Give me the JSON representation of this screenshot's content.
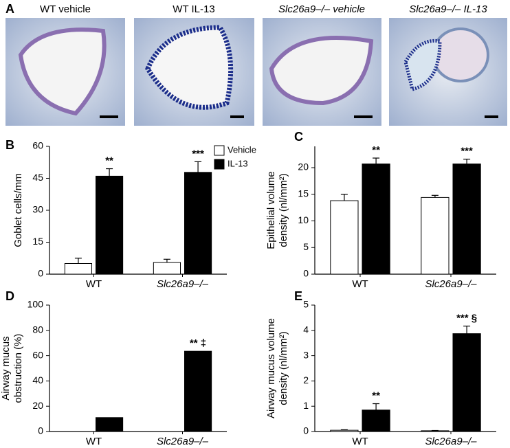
{
  "panel_a": {
    "letter": "A",
    "labels": [
      "WT vehicle",
      "WT IL-13",
      "Slc26a9–/– vehicle",
      "Slc26a9–/– IL-13"
    ]
  },
  "chart_data": [
    {
      "type": "bar",
      "panel": "B",
      "ylabel": [
        "Goblet cells/mm"
      ],
      "categories": [
        "WT",
        "Slc26a9–/–"
      ],
      "category_style": [
        "normal",
        "italic"
      ],
      "series": [
        {
          "name": "Vehicle",
          "color": "#ffffff",
          "values": [
            5,
            5.5
          ],
          "errors": [
            2.5,
            1.5
          ]
        },
        {
          "name": "IL-13",
          "color": "#000000",
          "values": [
            46,
            47.8
          ],
          "errors": [
            3.5,
            5
          ],
          "annotations": [
            "**",
            "***"
          ]
        }
      ],
      "ylim": [
        0,
        60
      ],
      "yticks": [
        0,
        15,
        30,
        45,
        60
      ],
      "legend": "upper right"
    },
    {
      "type": "bar",
      "panel": "C",
      "ylabel": [
        "Epithelial volume",
        "density (nl/mm²)"
      ],
      "categories": [
        "WT",
        "Slc26a9–/–"
      ],
      "category_style": [
        "normal",
        "italic"
      ],
      "series": [
        {
          "color": "#ffffff",
          "values": [
            13.8,
            14.4
          ],
          "errors": [
            1.2,
            0.4
          ]
        },
        {
          "color": "#000000",
          "values": [
            20.7,
            20.7
          ],
          "errors": [
            1.1,
            0.9
          ],
          "annotations": [
            "**",
            "***"
          ]
        }
      ],
      "ylim": [
        0,
        24
      ],
      "yticks": [
        0,
        5,
        10,
        15,
        20
      ]
    },
    {
      "type": "bar",
      "panel": "D",
      "ylabel": [
        "Airway mucus",
        "obstruction (%)"
      ],
      "categories": [
        "WT",
        "Slc26a9–/–"
      ],
      "category_style": [
        "normal",
        "italic"
      ],
      "series": [
        {
          "color": "#ffffff",
          "values": [
            0,
            0
          ]
        },
        {
          "color": "#000000",
          "values": [
            11,
            63.5
          ],
          "annotations": [
            null,
            "** ‡"
          ]
        }
      ],
      "ylim": [
        0,
        100
      ],
      "yticks": [
        0,
        20,
        40,
        60,
        80,
        100
      ]
    },
    {
      "type": "bar",
      "panel": "E",
      "ylabel": [
        "Airway mucus volume",
        "density (nl/mm²)"
      ],
      "categories": [
        "WT",
        "Slc26a9–/–"
      ],
      "category_style": [
        "normal",
        "italic"
      ],
      "series": [
        {
          "color": "#ffffff",
          "values": [
            0.05,
            0.03
          ],
          "errors": [
            0.02,
            0.01
          ]
        },
        {
          "color": "#000000",
          "values": [
            0.85,
            3.87
          ],
          "errors": [
            0.25,
            0.3
          ],
          "annotations": [
            "**",
            "*** §"
          ]
        }
      ],
      "ylim": [
        0,
        5
      ],
      "yticks": [
        0,
        1,
        2,
        3,
        4,
        5
      ]
    }
  ]
}
